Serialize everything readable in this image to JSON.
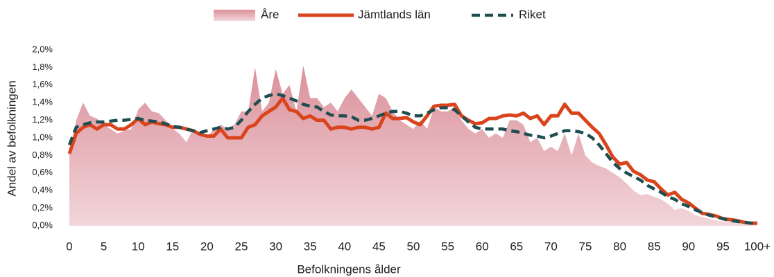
{
  "chart_data": {
    "type": "area-line",
    "x_label": "Befolkningens ålder",
    "y_label": "Andel av befolkningen",
    "categories": [
      "0",
      null,
      null,
      null,
      null,
      "5",
      null,
      null,
      null,
      null,
      "10",
      null,
      null,
      null,
      null,
      "15",
      null,
      null,
      null,
      null,
      "20",
      null,
      null,
      null,
      null,
      "25",
      null,
      null,
      null,
      null,
      "30",
      null,
      null,
      null,
      null,
      "35",
      null,
      null,
      null,
      null,
      "40",
      null,
      null,
      null,
      null,
      "45",
      null,
      null,
      null,
      null,
      "50",
      null,
      null,
      null,
      null,
      "55",
      null,
      null,
      null,
      null,
      "60",
      null,
      null,
      null,
      null,
      "65",
      null,
      null,
      null,
      null,
      "70",
      null,
      null,
      null,
      null,
      "75",
      null,
      null,
      null,
      null,
      "80",
      null,
      null,
      null,
      null,
      "85",
      null,
      null,
      null,
      null,
      "90",
      null,
      null,
      null,
      null,
      "95",
      null,
      null,
      null,
      null,
      "100+"
    ],
    "ylim": [
      0,
      2.0
    ],
    "yticks": [
      {
        "value": 0,
        "label": "0,0%"
      },
      {
        "value": 0.2,
        "label": "0,2%"
      },
      {
        "value": 0.4,
        "label": "0,4%"
      },
      {
        "value": 0.6,
        "label": "0,6%"
      },
      {
        "value": 0.8,
        "label": "0,8%"
      },
      {
        "value": 1.0,
        "label": "1,0%"
      },
      {
        "value": 1.2,
        "label": "1,2%"
      },
      {
        "value": 1.4,
        "label": "1,4%"
      },
      {
        "value": 1.6,
        "label": "1,6%"
      },
      {
        "value": 1.8,
        "label": "1,8%"
      },
      {
        "value": 2.0,
        "label": "2,0%"
      }
    ],
    "grid": false,
    "legend": "top",
    "series": [
      {
        "name": "Åre",
        "style": "area",
        "color": "#d98a95",
        "values": [
          0.85,
          1.2,
          1.4,
          1.25,
          1.22,
          1.15,
          1.1,
          1.05,
          1.08,
          1.1,
          1.32,
          1.4,
          1.3,
          1.28,
          1.2,
          1.1,
          1.05,
          0.95,
          1.1,
          1.05,
          1.0,
          1.1,
          1.15,
          1.1,
          1.15,
          1.3,
          1.3,
          1.8,
          1.3,
          1.4,
          1.78,
          1.5,
          1.6,
          1.3,
          1.82,
          1.45,
          1.45,
          1.35,
          1.4,
          1.3,
          1.45,
          1.55,
          1.45,
          1.35,
          1.25,
          1.5,
          1.45,
          1.3,
          1.2,
          1.15,
          1.1,
          1.2,
          1.1,
          1.35,
          1.3,
          1.3,
          1.35,
          1.2,
          1.1,
          1.05,
          1.1,
          1.0,
          1.05,
          1.0,
          1.2,
          1.2,
          1.15,
          0.95,
          1.0,
          0.85,
          0.9,
          0.85,
          1.05,
          0.8,
          1.05,
          0.8,
          0.72,
          0.68,
          0.65,
          0.6,
          0.55,
          0.48,
          0.4,
          0.35,
          0.36,
          0.33,
          0.3,
          0.25,
          0.18,
          0.2,
          0.17,
          0.12,
          0.1,
          0.08,
          0.06,
          0.05,
          0.04,
          0.03,
          0.02,
          0.02,
          0.02
        ]
      },
      {
        "name": "Jämtlands län",
        "style": "solid",
        "color": "#d9441c",
        "values": [
          0.82,
          1.05,
          1.12,
          1.15,
          1.1,
          1.15,
          1.15,
          1.1,
          1.1,
          1.15,
          1.22,
          1.15,
          1.18,
          1.16,
          1.15,
          1.12,
          1.12,
          1.1,
          1.08,
          1.04,
          1.02,
          1.02,
          1.1,
          1.0,
          1.0,
          1.0,
          1.12,
          1.15,
          1.25,
          1.3,
          1.35,
          1.45,
          1.32,
          1.3,
          1.22,
          1.25,
          1.2,
          1.2,
          1.1,
          1.12,
          1.12,
          1.1,
          1.12,
          1.12,
          1.1,
          1.12,
          1.28,
          1.22,
          1.22,
          1.23,
          1.18,
          1.15,
          1.25,
          1.36,
          1.37,
          1.37,
          1.38,
          1.25,
          1.2,
          1.16,
          1.17,
          1.22,
          1.22,
          1.25,
          1.26,
          1.25,
          1.28,
          1.22,
          1.25,
          1.15,
          1.25,
          1.25,
          1.38,
          1.28,
          1.28,
          1.2,
          1.12,
          1.05,
          0.92,
          0.78,
          0.7,
          0.72,
          0.62,
          0.58,
          0.52,
          0.5,
          0.42,
          0.35,
          0.38,
          0.3,
          0.26,
          0.2,
          0.14,
          0.13,
          0.11,
          0.08,
          0.07,
          0.06,
          0.04,
          0.03,
          0.03
        ]
      },
      {
        "name": "Riket",
        "style": "dashed",
        "color": "#1f4e50",
        "values": [
          0.92,
          1.12,
          1.15,
          1.17,
          1.18,
          1.18,
          1.19,
          1.2,
          1.2,
          1.21,
          1.22,
          1.2,
          1.19,
          1.18,
          1.16,
          1.13,
          1.12,
          1.1,
          1.08,
          1.06,
          1.08,
          1.1,
          1.12,
          1.1,
          1.12,
          1.2,
          1.3,
          1.38,
          1.45,
          1.48,
          1.5,
          1.48,
          1.45,
          1.42,
          1.38,
          1.36,
          1.35,
          1.3,
          1.26,
          1.25,
          1.25,
          1.24,
          1.2,
          1.2,
          1.22,
          1.25,
          1.28,
          1.3,
          1.3,
          1.28,
          1.25,
          1.25,
          1.28,
          1.32,
          1.34,
          1.34,
          1.32,
          1.25,
          1.18,
          1.12,
          1.1,
          1.1,
          1.1,
          1.1,
          1.08,
          1.07,
          1.05,
          1.03,
          1.02,
          1.0,
          1.02,
          1.05,
          1.08,
          1.08,
          1.07,
          1.05,
          1.0,
          0.92,
          0.82,
          0.72,
          0.65,
          0.6,
          0.56,
          0.52,
          0.46,
          0.42,
          0.38,
          0.33,
          0.3,
          0.25,
          0.22,
          0.18,
          0.15,
          0.12,
          0.1,
          0.08,
          0.06,
          0.05,
          0.04,
          0.03,
          0.03
        ]
      }
    ]
  }
}
